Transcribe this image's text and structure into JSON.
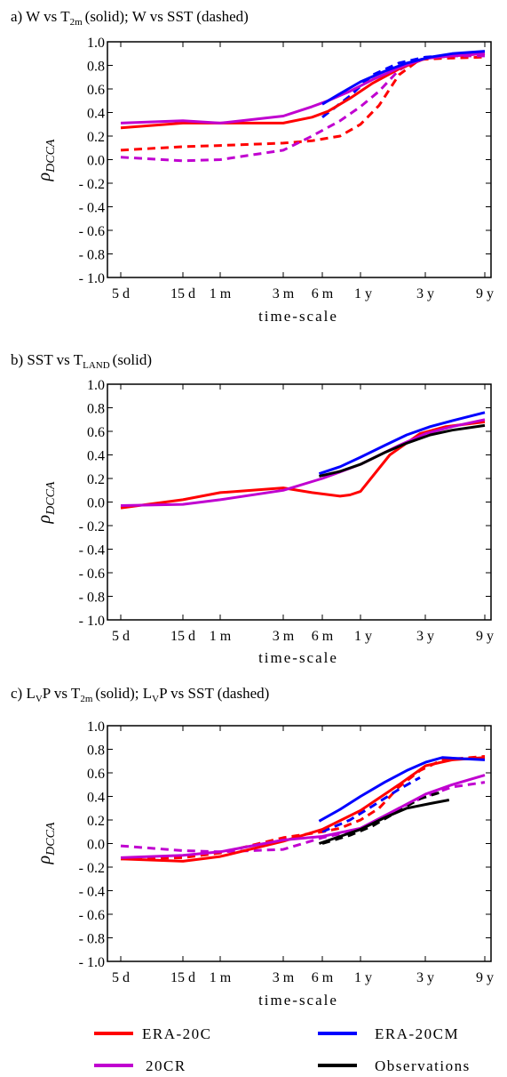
{
  "colors": {
    "ERA-20C": "#ff0000",
    "20CR": "#c000d0",
    "ERA-20CM": "#0000ff",
    "Observations": "#000000"
  },
  "x_tick_labels": [
    "5 d",
    "15 d",
    "1 m",
    "3 m",
    "6 m",
    "1 y",
    "3 y",
    "9 y"
  ],
  "legend": {
    "items": [
      {
        "label": "ERA-20C",
        "color": "#ff0000"
      },
      {
        "label": "ERA-20CM",
        "color": "#0000ff"
      },
      {
        "label": "20CR",
        "color": "#c000d0"
      },
      {
        "label": "Observations",
        "color": "#000000"
      }
    ]
  },
  "chart_data": [
    {
      "type": "line",
      "title_parts": [
        "a) W vs T",
        "2m",
        "(solid); W vs SST  (dashed)"
      ],
      "xlabel": "time-scale",
      "ylabel": "ρ",
      "ylabel_sub": "DCCA",
      "x_scale": "log",
      "x_ticks_days": [
        5,
        15,
        30,
        90,
        180,
        365,
        1095,
        3285
      ],
      "x_tick_labels": [
        "5 d",
        "15 d",
        "1 m",
        "3 m",
        "6 m",
        "1 y",
        "3 y",
        "9 y"
      ],
      "ylim": [
        -1.0,
        1.0
      ],
      "yticks": [
        1.0,
        0.8,
        0.6,
        0.4,
        0.2,
        0.0,
        -0.2,
        -0.4,
        -0.6,
        -0.8,
        -1.0
      ],
      "ytick_labels": [
        "1.0",
        "0.8",
        "0.6",
        "0.4",
        "0.2",
        "0.0",
        "- 0.2",
        "- 0.4",
        "- 0.6",
        "- 0.8",
        "- 1.0"
      ],
      "series": [
        {
          "name": "ERA-20C",
          "style": "solid",
          "x": [
            5,
            15,
            30,
            90,
            150,
            200,
            300,
            450,
            700,
            1100,
            1800,
            3285
          ],
          "y": [
            0.27,
            0.31,
            0.31,
            0.31,
            0.36,
            0.41,
            0.52,
            0.65,
            0.77,
            0.86,
            0.88,
            0.9
          ]
        },
        {
          "name": "20CR",
          "style": "solid",
          "x": [
            5,
            15,
            30,
            90,
            150,
            200,
            300,
            450,
            700,
            1100,
            1800,
            3285
          ],
          "y": [
            0.31,
            0.33,
            0.31,
            0.37,
            0.45,
            0.5,
            0.58,
            0.68,
            0.78,
            0.86,
            0.88,
            0.9
          ]
        },
        {
          "name": "ERA-20CM",
          "style": "solid",
          "x": [
            180,
            250,
            365,
            550,
            800,
            1200,
            1800,
            3285
          ],
          "y": [
            0.47,
            0.56,
            0.66,
            0.75,
            0.82,
            0.87,
            0.9,
            0.92
          ]
        },
        {
          "name": "ERA-20C",
          "style": "dashed",
          "x": [
            5,
            15,
            30,
            90,
            150,
            250,
            365,
            500,
            700,
            1000,
            1500,
            3285
          ],
          "y": [
            0.08,
            0.11,
            0.12,
            0.14,
            0.16,
            0.2,
            0.3,
            0.46,
            0.72,
            0.85,
            0.86,
            0.87
          ]
        },
        {
          "name": "20CR",
          "style": "dashed",
          "x": [
            5,
            15,
            30,
            90,
            150,
            250,
            365,
            500,
            700,
            1000,
            1500,
            3285
          ],
          "y": [
            0.02,
            -0.01,
            0.0,
            0.08,
            0.2,
            0.33,
            0.45,
            0.58,
            0.76,
            0.86,
            0.88,
            0.88
          ]
        },
        {
          "name": "ERA-20CM",
          "style": "dashed",
          "x": [
            180,
            300,
            450,
            700,
            1100,
            3285
          ],
          "y": [
            0.36,
            0.54,
            0.72,
            0.82,
            0.87,
            0.9
          ]
        }
      ]
    },
    {
      "type": "line",
      "title_parts": [
        "b) SST vs T",
        "LAND",
        "(solid)"
      ],
      "xlabel": "time-scale",
      "ylabel": "ρ",
      "ylabel_sub": "DCCA",
      "x_scale": "log",
      "x_ticks_days": [
        5,
        15,
        30,
        90,
        180,
        365,
        1095,
        3285
      ],
      "x_tick_labels": [
        "5 d",
        "15 d",
        "1 m",
        "3 m",
        "6 m",
        "1 y",
        "3 y",
        "9 y"
      ],
      "ylim": [
        -1.0,
        1.0
      ],
      "yticks": [
        1.0,
        0.8,
        0.6,
        0.4,
        0.2,
        0.0,
        -0.2,
        -0.4,
        -0.6,
        -0.8,
        -1.0
      ],
      "ytick_labels": [
        "1.0",
        "0.8",
        "0.6",
        "0.4",
        "0.2",
        "0.0",
        "- 0.2",
        "- 0.4",
        "- 0.6",
        "- 0.8",
        "- 1.0"
      ],
      "series": [
        {
          "name": "ERA-20C",
          "style": "solid",
          "x": [
            5,
            15,
            30,
            90,
            150,
            250,
            300,
            365,
            600,
            1000,
            1600,
            3285
          ],
          "y": [
            -0.05,
            0.02,
            0.08,
            0.12,
            0.08,
            0.05,
            0.06,
            0.09,
            0.4,
            0.58,
            0.64,
            0.68
          ]
        },
        {
          "name": "20CR",
          "style": "solid",
          "x": [
            5,
            15,
            30,
            90,
            180,
            365,
            700,
            1100,
            1800,
            3285
          ],
          "y": [
            -0.03,
            -0.02,
            0.02,
            0.1,
            0.2,
            0.32,
            0.48,
            0.58,
            0.64,
            0.7
          ]
        },
        {
          "name": "ERA-20CM",
          "style": "solid",
          "x": [
            170,
            250,
            365,
            550,
            800,
            1200,
            1800,
            3285
          ],
          "y": [
            0.24,
            0.3,
            0.38,
            0.48,
            0.57,
            0.64,
            0.69,
            0.76
          ]
        },
        {
          "name": "Observations",
          "style": "solid",
          "x": [
            170,
            250,
            365,
            550,
            800,
            1200,
            1800,
            3285
          ],
          "y": [
            0.22,
            0.26,
            0.32,
            0.42,
            0.5,
            0.57,
            0.61,
            0.65
          ]
        }
      ]
    },
    {
      "type": "line",
      "title_parts": [
        "c) L",
        "V",
        "P vs T",
        "2m",
        "(solid); L",
        "V",
        "P vs SST  (dashed)"
      ],
      "xlabel": "time-scale",
      "ylabel": "ρ",
      "ylabel_sub": "DCCA",
      "x_scale": "log",
      "x_ticks_days": [
        5,
        15,
        30,
        90,
        180,
        365,
        1095,
        3285
      ],
      "x_tick_labels": [
        "5 d",
        "15 d",
        "1 m",
        "3 m",
        "6 m",
        "1 y",
        "3 y",
        "9 y"
      ],
      "ylim": [
        -1.0,
        1.0
      ],
      "yticks": [
        1.0,
        0.8,
        0.6,
        0.4,
        0.2,
        0.0,
        -0.2,
        -0.4,
        -0.6,
        -0.8,
        -1.0
      ],
      "ytick_labels": [
        "1.0",
        "0.8",
        "0.6",
        "0.4",
        "0.2",
        "0.0",
        "- 0.2",
        "- 0.4",
        "- 0.6",
        "- 0.8",
        "- 1.0"
      ],
      "series": [
        {
          "name": "ERA-20C",
          "style": "solid",
          "x": [
            5,
            15,
            30,
            90,
            180,
            365,
            700,
            1100,
            1800,
            3285
          ],
          "y": [
            -0.13,
            -0.15,
            -0.11,
            0.02,
            0.12,
            0.28,
            0.5,
            0.66,
            0.71,
            0.73
          ]
        },
        {
          "name": "20CR",
          "style": "solid",
          "x": [
            5,
            15,
            30,
            90,
            180,
            365,
            700,
            1100,
            1800,
            3285
          ],
          "y": [
            -0.12,
            -0.1,
            -0.07,
            0.03,
            0.06,
            0.13,
            0.3,
            0.42,
            0.5,
            0.58
          ]
        },
        {
          "name": "ERA-20CM",
          "style": "solid",
          "x": [
            170,
            250,
            365,
            550,
            800,
            1100,
            1500,
            2200,
            3285
          ],
          "y": [
            0.19,
            0.29,
            0.4,
            0.52,
            0.62,
            0.69,
            0.73,
            0.72,
            0.71
          ]
        },
        {
          "name": "Observations",
          "style": "solid",
          "x": [
            170,
            250,
            365,
            550,
            800,
            1200,
            1700
          ],
          "y": [
            0.0,
            0.06,
            0.12,
            0.22,
            0.3,
            0.34,
            0.37
          ]
        },
        {
          "name": "ERA-20C",
          "style": "dashed",
          "x": [
            5,
            15,
            30,
            90,
            180,
            250,
            365,
            500,
            700,
            1000,
            1500,
            3285
          ],
          "y": [
            -0.13,
            -0.12,
            -0.08,
            0.05,
            0.1,
            0.13,
            0.2,
            0.3,
            0.48,
            0.62,
            0.71,
            0.74
          ]
        },
        {
          "name": "20CR",
          "style": "dashed",
          "x": [
            5,
            15,
            30,
            90,
            180,
            365,
            700,
            1100,
            1800,
            3285
          ],
          "y": [
            -0.02,
            -0.06,
            -0.07,
            -0.05,
            0.05,
            0.12,
            0.3,
            0.4,
            0.48,
            0.52
          ]
        },
        {
          "name": "ERA-20CM",
          "style": "dashed",
          "x": [
            180,
            300,
            450,
            700,
            1000
          ],
          "y": [
            0.1,
            0.2,
            0.32,
            0.46,
            0.56
          ]
        },
        {
          "name": "Observations",
          "style": "dashed",
          "x": [
            180,
            300,
            450,
            700,
            1000,
            1500
          ],
          "y": [
            0.0,
            0.07,
            0.15,
            0.28,
            0.38,
            0.44
          ]
        }
      ]
    }
  ]
}
